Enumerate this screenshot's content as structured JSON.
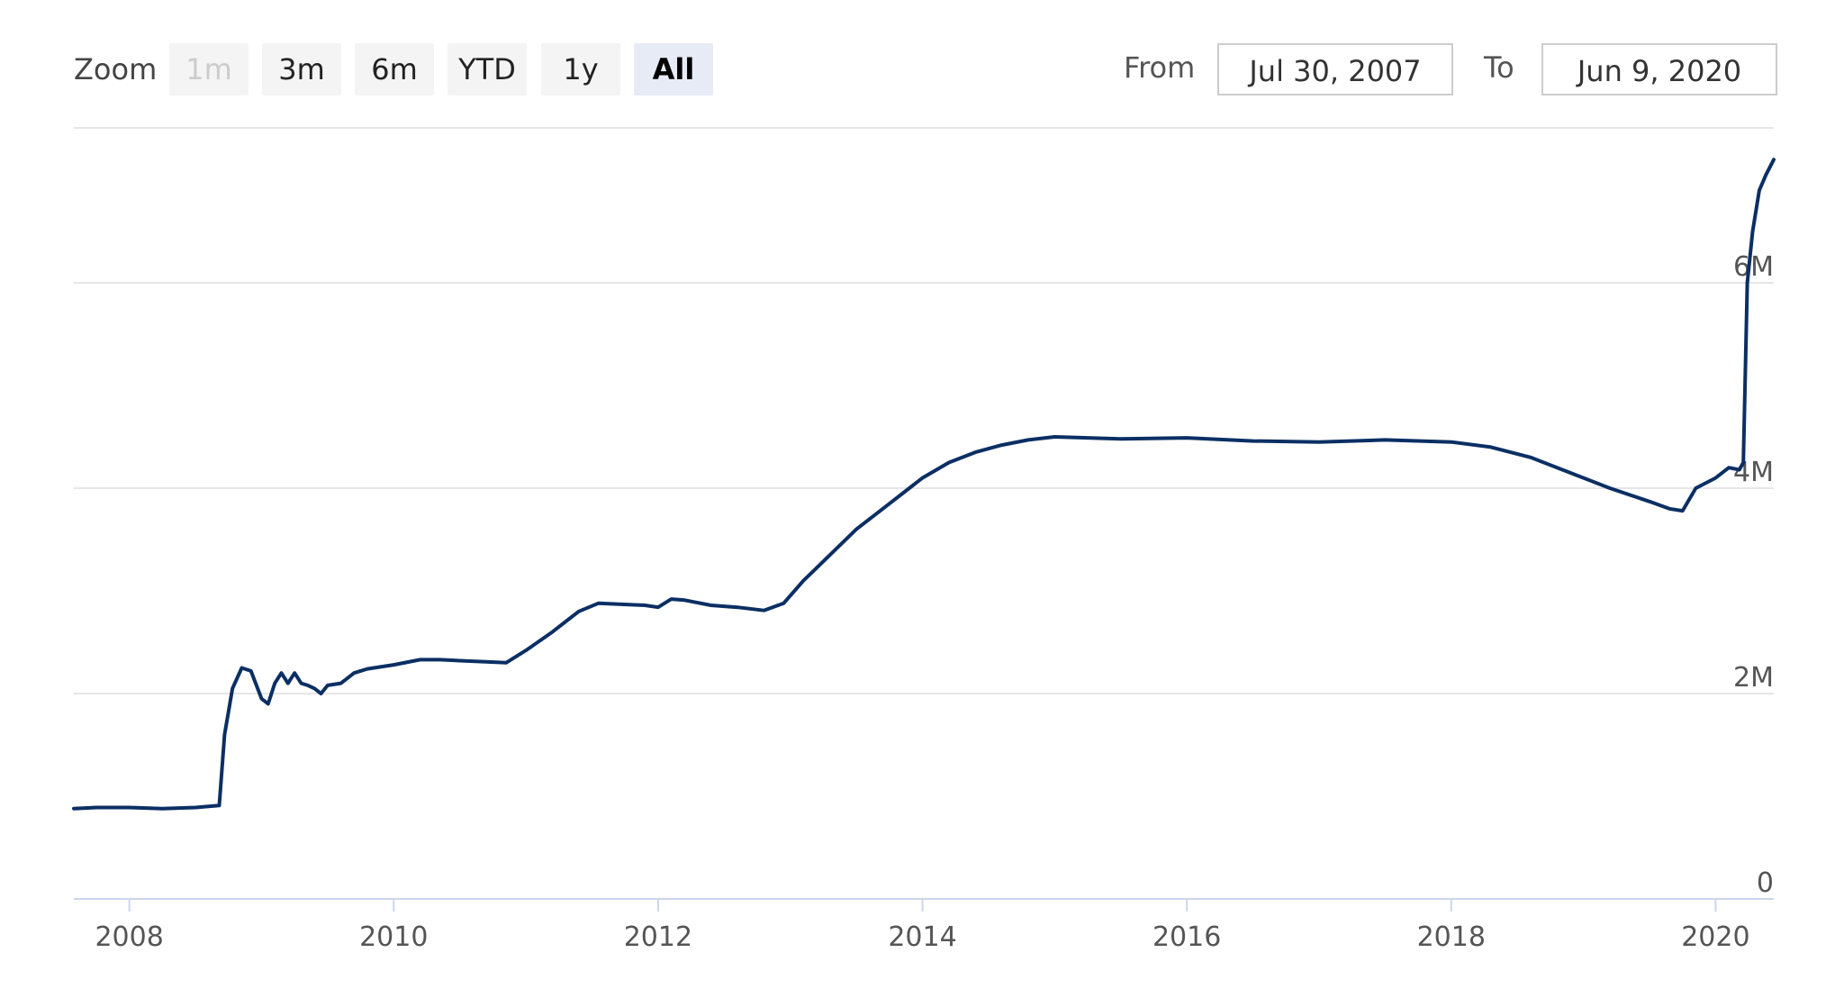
{
  "toolbar": {
    "zoom_label": "Zoom",
    "zoom_buttons": [
      {
        "label": "1m",
        "state": "disabled"
      },
      {
        "label": "3m",
        "state": "normal"
      },
      {
        "label": "6m",
        "state": "normal"
      },
      {
        "label": "YTD",
        "state": "normal"
      },
      {
        "label": "1y",
        "state": "normal"
      },
      {
        "label": "All",
        "state": "active"
      }
    ],
    "from_label": "From",
    "from_value": "Jul 30, 2007",
    "to_label": "To",
    "to_value": "Jun 9, 2020"
  },
  "colors": {
    "line": "#0b2f64",
    "grid": "#e6e6e6",
    "axis": "#ccd6eb"
  },
  "chart_data": {
    "type": "line",
    "title": "",
    "xlabel": "",
    "ylabel": "",
    "x_unit": "year",
    "xlim": [
      2007.58,
      2020.44
    ],
    "ylim": [
      0,
      7500000
    ],
    "x_ticks": [
      {
        "value": 2008,
        "label": "2008"
      },
      {
        "value": 2010,
        "label": "2010"
      },
      {
        "value": 2012,
        "label": "2012"
      },
      {
        "value": 2014,
        "label": "2014"
      },
      {
        "value": 2016,
        "label": "2016"
      },
      {
        "value": 2018,
        "label": "2018"
      },
      {
        "value": 2020,
        "label": "2020"
      }
    ],
    "y_ticks": [
      {
        "value": 0,
        "label": "0"
      },
      {
        "value": 2000000,
        "label": "2M"
      },
      {
        "value": 4000000,
        "label": "4M"
      },
      {
        "value": 6000000,
        "label": "6M"
      }
    ],
    "grid": true,
    "legend": "none",
    "series": [
      {
        "x": [
          2007.58,
          2007.75,
          2008.0,
          2008.25,
          2008.5,
          2008.68,
          2008.72,
          2008.78,
          2008.85,
          2008.92,
          2009.0,
          2009.05,
          2009.1,
          2009.15,
          2009.2,
          2009.25,
          2009.3,
          2009.35,
          2009.4,
          2009.45,
          2009.5,
          2009.6,
          2009.7,
          2009.8,
          2010.0,
          2010.2,
          2010.35,
          2010.5,
          2010.7,
          2010.85,
          2011.0,
          2011.2,
          2011.4,
          2011.55,
          2011.7,
          2011.9,
          2012.0,
          2012.1,
          2012.2,
          2012.4,
          2012.6,
          2012.8,
          2012.95,
          2013.1,
          2013.3,
          2013.5,
          2013.7,
          2013.9,
          2014.0,
          2014.2,
          2014.4,
          2014.6,
          2014.8,
          2015.0,
          2015.5,
          2016.0,
          2016.5,
          2017.0,
          2017.5,
          2018.0,
          2018.3,
          2018.6,
          2018.9,
          2019.2,
          2019.5,
          2019.65,
          2019.75,
          2019.85,
          2020.0,
          2020.1,
          2020.18,
          2020.21,
          2020.24,
          2020.28,
          2020.33,
          2020.38,
          2020.44
        ],
        "values": [
          880000,
          890000,
          890000,
          880000,
          890000,
          910000,
          1600000,
          2050000,
          2250000,
          2220000,
          1950000,
          1900000,
          2100000,
          2200000,
          2100000,
          2200000,
          2100000,
          2080000,
          2050000,
          2000000,
          2080000,
          2100000,
          2200000,
          2240000,
          2280000,
          2330000,
          2330000,
          2320000,
          2310000,
          2300000,
          2420000,
          2600000,
          2800000,
          2880000,
          2870000,
          2860000,
          2840000,
          2920000,
          2910000,
          2860000,
          2840000,
          2810000,
          2880000,
          3100000,
          3350000,
          3600000,
          3800000,
          4000000,
          4100000,
          4250000,
          4350000,
          4420000,
          4470000,
          4500000,
          4480000,
          4490000,
          4460000,
          4450000,
          4470000,
          4450000,
          4400000,
          4300000,
          4150000,
          4000000,
          3870000,
          3800000,
          3780000,
          4000000,
          4100000,
          4200000,
          4180000,
          4250000,
          6000000,
          6500000,
          6900000,
          7050000,
          7200000
        ]
      }
    ]
  }
}
